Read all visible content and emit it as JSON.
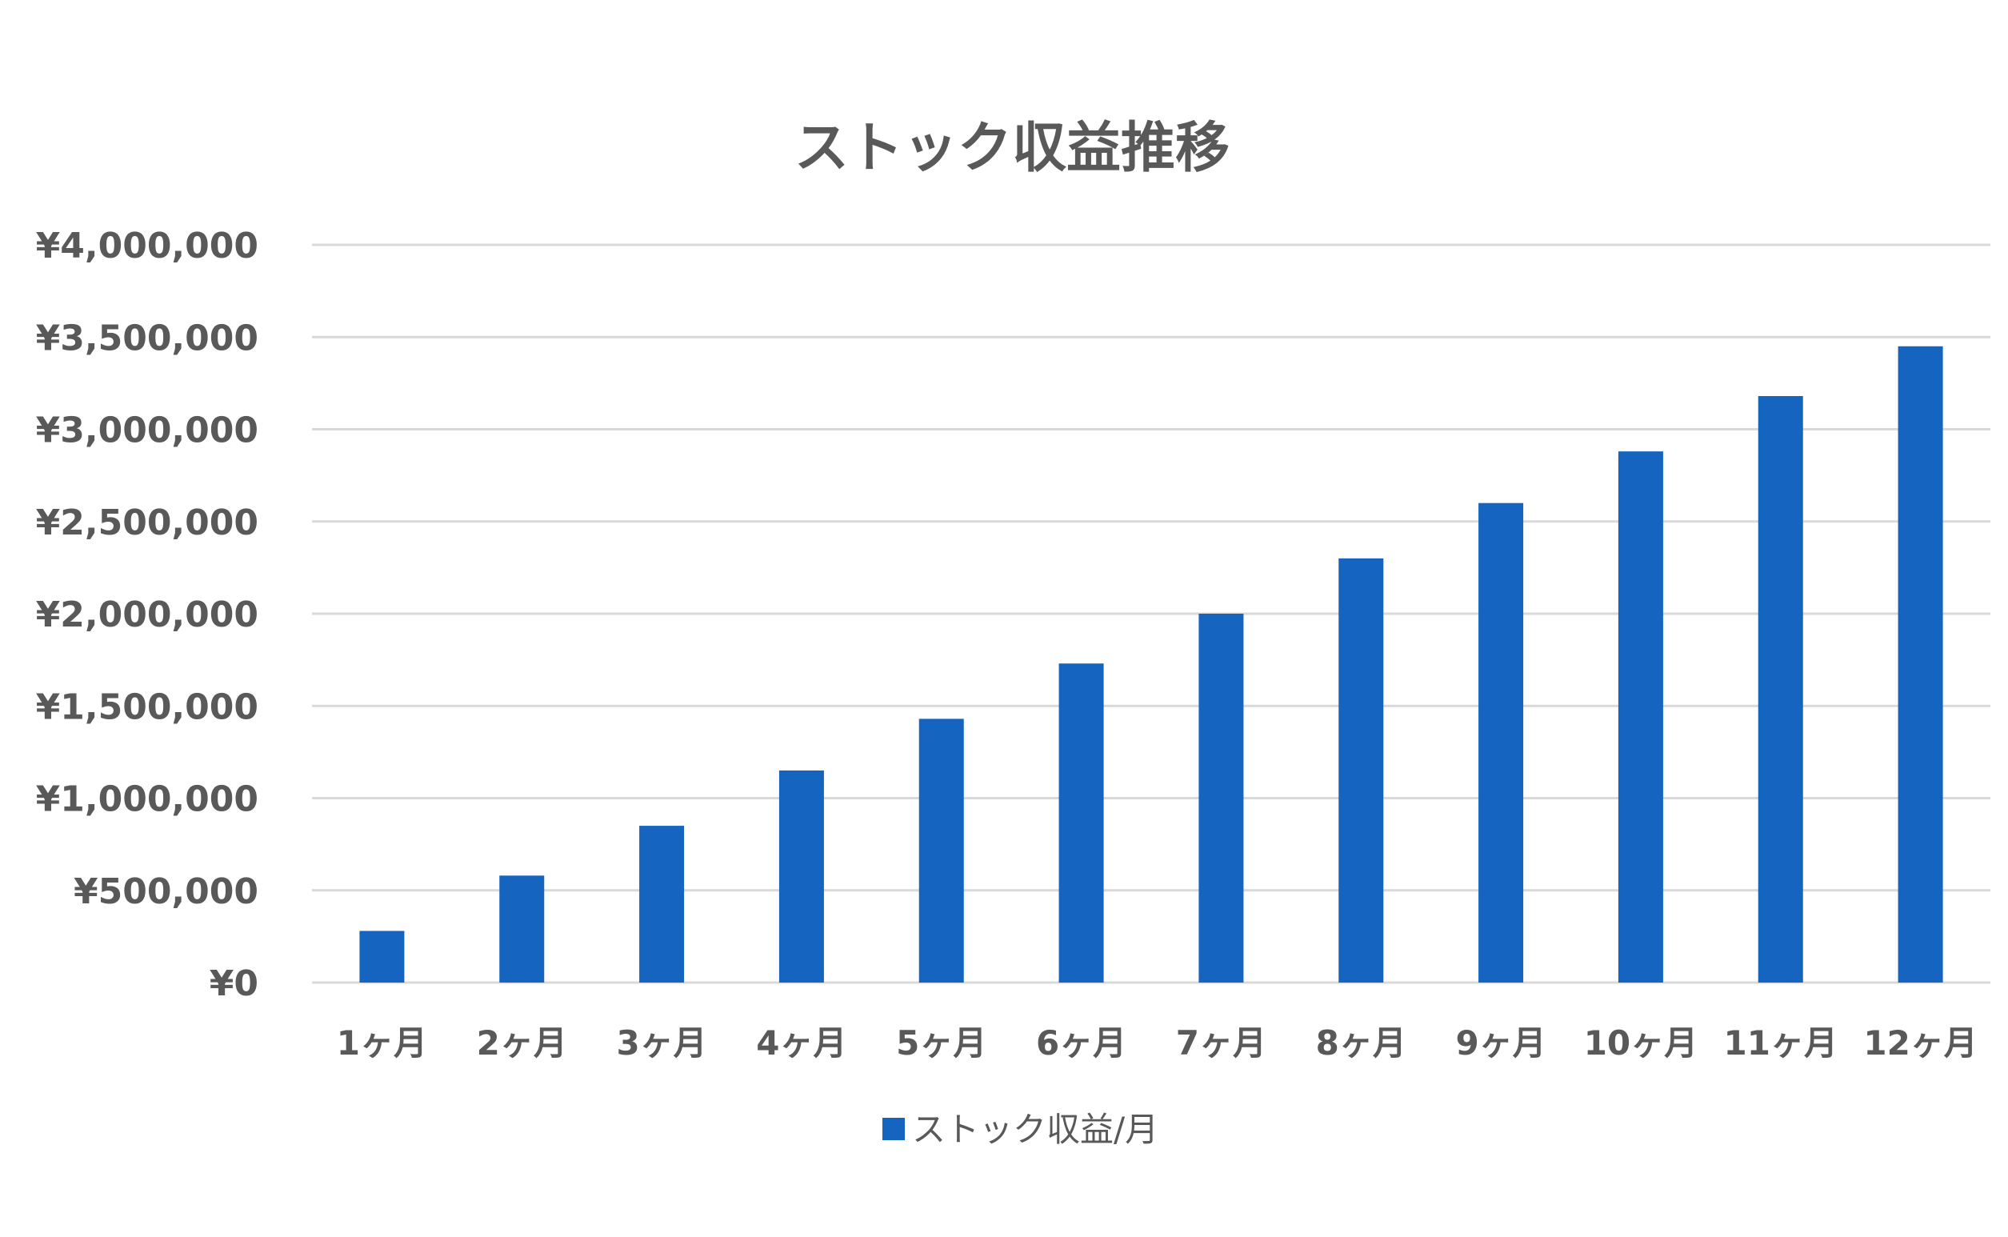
{
  "chart_data": {
    "type": "bar",
    "title": "ストック収益推移",
    "xlabel": "",
    "ylabel": "",
    "categories": [
      "1ヶ月",
      "2ヶ月",
      "3ヶ月",
      "4ヶ月",
      "5ヶ月",
      "6ヶ月",
      "7ヶ月",
      "8ヶ月",
      "9ヶ月",
      "10ヶ月",
      "11ヶ月",
      "12ヶ月"
    ],
    "series": [
      {
        "name": "ストック収益/月",
        "color": "#1565c0",
        "values": [
          280000,
          580000,
          850000,
          1150000,
          1430000,
          1730000,
          2000000,
          2300000,
          2600000,
          2880000,
          3180000,
          3450000
        ]
      }
    ],
    "ylim": [
      0,
      4000000
    ],
    "yticks": [
      0,
      500000,
      1000000,
      1500000,
      2000000,
      2500000,
      3000000,
      3500000,
      4000000
    ],
    "ytick_labels": [
      "¥0",
      "¥500,000",
      "¥1,000,000",
      "¥1,500,000",
      "¥2,000,000",
      "¥2,500,000",
      "¥3,000,000",
      "¥3,500,000",
      "¥4,000,000"
    ],
    "grid": true,
    "legend": "bottom"
  }
}
